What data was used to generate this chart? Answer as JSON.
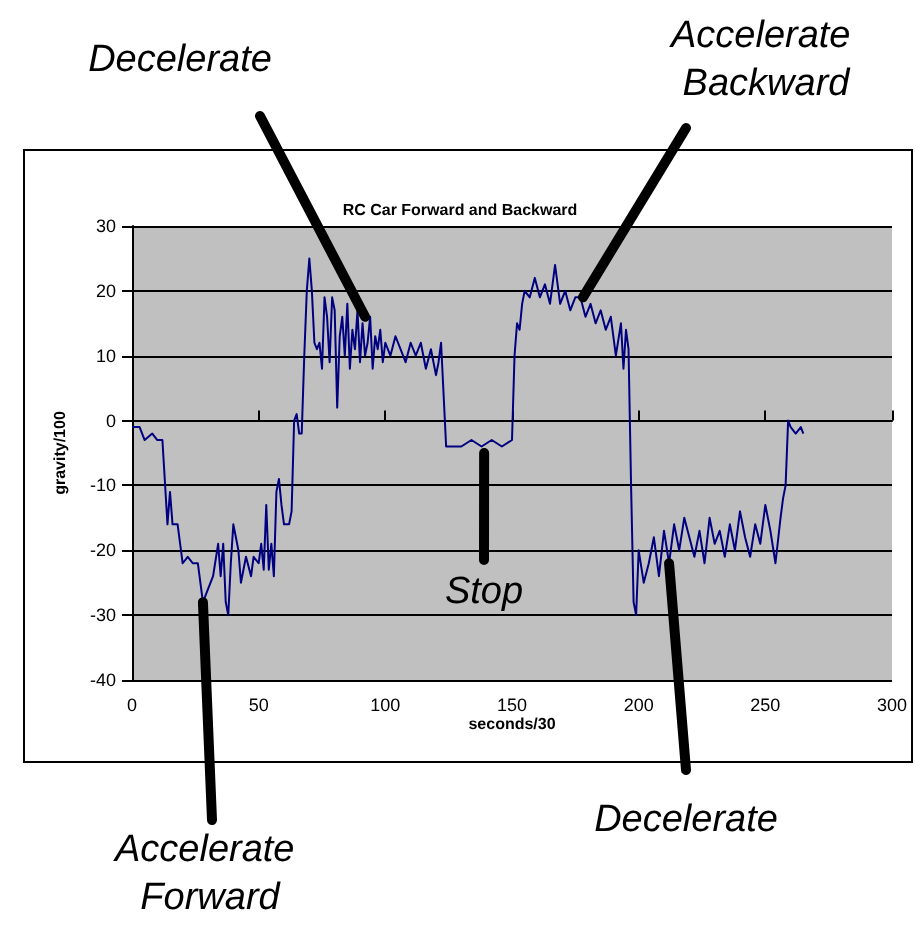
{
  "chart_data": {
    "type": "line",
    "title": "RC Car Forward and Backward",
    "xlabel": "seconds/30",
    "ylabel": "gravity/100",
    "xlim": [
      0,
      300
    ],
    "xticks": [
      0,
      50,
      100,
      150,
      200,
      250,
      300
    ],
    "ylim": [
      -40,
      30
    ],
    "yticks": [
      -40,
      -30,
      -20,
      -10,
      0,
      10,
      20,
      30
    ],
    "grid": "y",
    "marker": "none",
    "line_style": "solid",
    "series": [
      {
        "color": "#000080",
        "x": [
          0,
          3,
          5,
          8,
          10,
          12,
          14,
          15,
          16,
          18,
          19,
          20,
          22,
          24,
          26,
          28,
          30,
          32,
          34,
          35,
          36,
          37,
          38,
          39,
          40,
          41,
          42,
          43,
          45,
          47,
          48,
          50,
          51,
          52,
          53,
          54,
          55,
          56,
          57,
          58,
          59,
          60,
          62,
          63,
          64,
          65,
          66,
          67,
          68,
          69,
          70,
          71,
          72,
          73,
          74,
          75,
          76,
          77,
          78,
          79,
          80,
          81,
          82,
          83,
          84,
          85,
          86,
          87,
          88,
          89,
          90,
          91,
          92,
          93,
          94,
          95,
          96,
          97,
          98,
          99,
          100,
          102,
          104,
          106,
          108,
          110,
          112,
          114,
          116,
          118,
          120,
          121,
          122,
          124,
          126,
          130,
          134,
          138,
          142,
          146,
          150,
          151,
          152,
          153,
          154,
          155,
          157,
          159,
          161,
          163,
          165,
          167,
          169,
          171,
          173,
          175,
          177,
          179,
          181,
          183,
          185,
          187,
          189,
          191,
          193,
          194,
          195,
          196,
          197,
          198,
          199,
          200,
          202,
          204,
          206,
          208,
          210,
          212,
          214,
          216,
          218,
          220,
          222,
          224,
          226,
          228,
          230,
          232,
          234,
          236,
          238,
          240,
          242,
          244,
          246,
          248,
          250,
          252,
          254,
          256,
          257,
          258,
          259,
          260,
          262,
          264,
          265
        ],
        "values": [
          -1,
          -1,
          -3,
          -2,
          -3,
          -3,
          -16,
          -11,
          -16,
          -16,
          -19,
          -22,
          -21,
          -22,
          -22,
          -28,
          -26,
          -24,
          -19,
          -24,
          -19,
          -28,
          -30,
          -22,
          -16,
          -18,
          -20,
          -25,
          -21,
          -24,
          -21,
          -22,
          -19,
          -23,
          -13,
          -23,
          -19,
          -24,
          -11,
          -9,
          -13,
          -16,
          -16,
          -14,
          0,
          1,
          -2,
          -2,
          10,
          20,
          25,
          20,
          12,
          11,
          12,
          8,
          19,
          16,
          9,
          19,
          17,
          2,
          13,
          16,
          10,
          18,
          8,
          14,
          11,
          17,
          9,
          15,
          10,
          12,
          16,
          8,
          13,
          11,
          14,
          9,
          12,
          10,
          13,
          11,
          9,
          12,
          10,
          12,
          8,
          11,
          7,
          9,
          12,
          -4,
          -4,
          -4,
          -3,
          -4,
          -3,
          -4,
          -3,
          10,
          15,
          14,
          18,
          20,
          19,
          22,
          19,
          21,
          18,
          24,
          18,
          20,
          17,
          19,
          19,
          16,
          18,
          15,
          17,
          14,
          16,
          10,
          15,
          8,
          14,
          11,
          -10,
          -28,
          -30,
          -20,
          -25,
          -22,
          -18,
          -24,
          -17,
          -22,
          -16,
          -20,
          -15,
          -18,
          -21,
          -17,
          -22,
          -15,
          -19,
          -17,
          -21,
          -16,
          -20,
          -14,
          -18,
          -21,
          -16,
          -19,
          -13,
          -17,
          -22,
          -15,
          -12,
          -10,
          0,
          -1,
          -2,
          -1,
          -2
        ]
      }
    ],
    "annotations": [
      {
        "text": "Decelerate",
        "x": 92,
        "y": 16
      },
      {
        "text": "Accelerate Backward",
        "x": 178,
        "y": 19
      },
      {
        "text": "Stop",
        "x": 139,
        "y": -5
      },
      {
        "text": "Accelerate Forward",
        "x": 28,
        "y": -28
      },
      {
        "text": "Decelerate",
        "x": 212,
        "y": -22
      }
    ]
  }
}
